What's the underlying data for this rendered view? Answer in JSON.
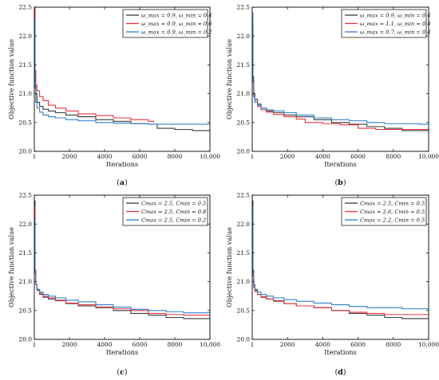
{
  "colors": {
    "black": "#3a3a3a",
    "red": "#e8343c",
    "blue": "#2f7fd1"
  },
  "chart_data": [
    {
      "panel": "a",
      "caption_open": "(",
      "caption_letter": "a",
      "caption_close": ")",
      "type": "line",
      "xlabel": "Iterations",
      "ylabel": "Objective function value",
      "xlim": [
        0,
        10000
      ],
      "ylim": [
        20.0,
        22.5
      ],
      "x_ticks": [
        1,
        2000,
        4000,
        6000,
        8000,
        10000
      ],
      "x_tick_labels": [
        "1",
        "2000",
        "4000",
        "6000",
        "8000",
        "10,000"
      ],
      "y_ticks": [
        20.0,
        20.5,
        21.0,
        21.5,
        22.0,
        22.5
      ],
      "y_tick_labels": [
        "20.0",
        "20.5",
        "21.0",
        "21.5",
        "22.0",
        "22.5"
      ],
      "legend_position": "top-right",
      "series": [
        {
          "name": "ω_max = 0.9, ω_min = 0.4",
          "color": "#3a3a3a",
          "x": [
            1,
            40,
            80,
            150,
            300,
            500,
            800,
            1200,
            1800,
            2500,
            3500,
            4500,
            5500,
            6500,
            7000,
            8000,
            9000,
            10000
          ],
          "y": [
            22.5,
            21.4,
            21.0,
            20.85,
            20.78,
            20.73,
            20.7,
            20.67,
            20.63,
            20.6,
            20.55,
            20.52,
            20.48,
            20.47,
            20.4,
            20.38,
            20.36,
            20.35
          ]
        },
        {
          "name": "ω_max = 0.9, ω_min = 0.6",
          "color": "#e8343c",
          "x": [
            1,
            40,
            80,
            150,
            300,
            500,
            800,
            1200,
            1800,
            2500,
            3500,
            4500,
            5500,
            6500,
            6800
          ],
          "y": [
            22.5,
            21.4,
            21.15,
            21.05,
            20.95,
            20.88,
            20.8,
            20.75,
            20.7,
            20.65,
            20.62,
            20.58,
            20.55,
            20.52,
            20.5
          ]
        },
        {
          "name": "ω_max = 0.9, ω_min = 0.2",
          "color": "#2f7fd1",
          "x": [
            1,
            40,
            80,
            150,
            300,
            500,
            800,
            1200,
            1800,
            2500,
            3500,
            4500,
            5500,
            6500,
            8000,
            10000
          ],
          "y": [
            22.3,
            21.1,
            20.85,
            20.75,
            20.68,
            20.63,
            20.6,
            20.58,
            20.55,
            20.53,
            20.5,
            20.49,
            20.48,
            20.47,
            20.47,
            20.46
          ]
        }
      ]
    },
    {
      "panel": "b",
      "caption_open": "(",
      "caption_letter": "b",
      "caption_close": ")",
      "type": "line",
      "xlabel": "Iterations",
      "ylabel": "Objective function value",
      "xlim": [
        0,
        10000
      ],
      "ylim": [
        20.0,
        22.5
      ],
      "x_ticks": [
        1,
        2000,
        4000,
        6000,
        8000,
        10000
      ],
      "x_tick_labels": [
        "1",
        "2000",
        "4000",
        "6000",
        "8000",
        "10,000"
      ],
      "y_ticks": [
        20.0,
        20.5,
        21.0,
        21.5,
        22.0,
        22.5
      ],
      "y_tick_labels": [
        "20.0",
        "20.5",
        "21.0",
        "21.5",
        "22.0",
        "22.5"
      ],
      "legend_position": "top-right",
      "series": [
        {
          "name": "ω_max = 0.9, ω_min = 0.4",
          "color": "#3a3a3a",
          "x": [
            1,
            40,
            80,
            150,
            300,
            500,
            800,
            1200,
            1800,
            2500,
            3500,
            4500,
            5500,
            6500,
            7500,
            8500,
            10000
          ],
          "y": [
            22.2,
            21.3,
            21.0,
            20.9,
            20.82,
            20.75,
            20.7,
            20.67,
            20.63,
            20.6,
            20.55,
            20.5,
            20.47,
            20.43,
            20.4,
            20.36,
            20.35
          ]
        },
        {
          "name": "ω_max = 1.1, ω_min = 0.4",
          "color": "#e8343c",
          "x": [
            1,
            40,
            80,
            150,
            300,
            500,
            800,
            1200,
            1800,
            2500,
            3000,
            4000,
            5000,
            6000,
            7000,
            8000,
            10000
          ],
          "y": [
            22.1,
            21.2,
            20.95,
            20.85,
            20.78,
            20.72,
            20.68,
            20.64,
            20.6,
            20.56,
            20.5,
            20.48,
            20.46,
            20.4,
            20.38,
            20.38,
            20.38
          ]
        },
        {
          "name": "ω_max = 0.7, ω_min = 0.4",
          "color": "#2f7fd1",
          "x": [
            1,
            40,
            80,
            150,
            300,
            500,
            800,
            1200,
            1800,
            2500,
            3500,
            4500,
            5500,
            6500,
            7500,
            8500,
            9500,
            10000
          ],
          "y": [
            22.4,
            21.2,
            20.95,
            20.85,
            20.8,
            20.75,
            20.72,
            20.7,
            20.67,
            20.63,
            20.58,
            20.55,
            20.53,
            20.5,
            20.48,
            20.48,
            20.47,
            20.45
          ]
        }
      ]
    },
    {
      "panel": "c",
      "caption_open": "(",
      "caption_letter": "c",
      "caption_close": ")",
      "type": "line",
      "xlabel": "Iterations",
      "ylabel": "Objective function value",
      "xlim": [
        0,
        10000
      ],
      "ylim": [
        20.0,
        22.5
      ],
      "x_ticks": [
        1,
        2000,
        4000,
        6000,
        8000,
        10000
      ],
      "x_tick_labels": [
        "1",
        "2000",
        "4000",
        "6000",
        "8000",
        "10,000"
      ],
      "y_ticks": [
        20.0,
        20.5,
        21.0,
        21.5,
        22.0,
        22.5
      ],
      "y_tick_labels": [
        "20.0",
        "20.5",
        "21.0",
        "21.5",
        "22.0",
        "22.5"
      ],
      "legend_position": "top-right",
      "series": [
        {
          "name": "Cmax = 2.5, Cmin = 0.5",
          "color": "#3a3a3a",
          "x": [
            1,
            40,
            80,
            150,
            300,
            500,
            800,
            1200,
            1800,
            2500,
            3500,
            4500,
            5500,
            6500,
            7500,
            8500,
            10000
          ],
          "y": [
            22.4,
            21.2,
            20.95,
            20.85,
            20.78,
            20.73,
            20.7,
            20.67,
            20.62,
            20.58,
            20.55,
            20.5,
            20.45,
            20.42,
            20.38,
            20.36,
            20.35
          ]
        },
        {
          "name": "Cmax = 2.5, Cmin = 0.8",
          "color": "#e8343c",
          "x": [
            1,
            40,
            80,
            150,
            300,
            500,
            800,
            1200,
            1800,
            2500,
            3500,
            4500,
            5500,
            6500,
            7500,
            8500,
            10000
          ],
          "y": [
            22.3,
            21.2,
            20.95,
            20.87,
            20.8,
            20.75,
            20.72,
            20.68,
            20.63,
            20.6,
            20.56,
            20.53,
            20.5,
            20.45,
            20.43,
            20.42,
            20.42
          ]
        },
        {
          "name": "Cmax = 2.5, Cmin = 0.2",
          "color": "#2f7fd1",
          "x": [
            1,
            40,
            80,
            150,
            300,
            500,
            800,
            1200,
            1800,
            2500,
            3500,
            4500,
            5500,
            6500,
            7500,
            8500,
            10000
          ],
          "y": [
            22.1,
            21.15,
            20.95,
            20.87,
            20.82,
            20.78,
            20.75,
            20.72,
            20.68,
            20.65,
            20.6,
            20.56,
            20.52,
            20.5,
            20.48,
            20.46,
            20.45
          ]
        }
      ]
    },
    {
      "panel": "d",
      "caption_open": "(",
      "caption_letter": "d",
      "caption_close": ")",
      "type": "line",
      "xlabel": "Iterations",
      "ylabel": "Objective function value",
      "xlim": [
        0,
        10000
      ],
      "ylim": [
        20.0,
        22.5
      ],
      "x_ticks": [
        1,
        2000,
        4000,
        6000,
        8000,
        10000
      ],
      "x_tick_labels": [
        "1",
        "2000",
        "4000",
        "6000",
        "8000",
        "10,000"
      ],
      "y_ticks": [
        20.0,
        20.5,
        21.0,
        21.5,
        22.0,
        22.5
      ],
      "y_tick_labels": [
        "20.0",
        "20.5",
        "21.0",
        "21.5",
        "22.0",
        "22.5"
      ],
      "legend_position": "top-right",
      "series": [
        {
          "name": "Cmax = 2.5, Cmin = 0.5",
          "color": "#3a3a3a",
          "x": [
            1,
            40,
            80,
            150,
            300,
            500,
            800,
            1200,
            1800,
            2500,
            3500,
            4500,
            5500,
            6500,
            7500,
            8500,
            10000
          ],
          "y": [
            22.4,
            21.2,
            20.95,
            20.85,
            20.78,
            20.73,
            20.7,
            20.67,
            20.62,
            20.58,
            20.55,
            20.5,
            20.45,
            20.42,
            20.38,
            20.36,
            20.35
          ]
        },
        {
          "name": "Cmax = 2.6, Cmin = 0.5",
          "color": "#e8343c",
          "x": [
            1,
            40,
            80,
            150,
            300,
            500,
            800,
            1200,
            1800,
            2500,
            3500,
            4500,
            5500,
            6500,
            7500,
            8500,
            10000
          ],
          "y": [
            22.0,
            21.1,
            20.9,
            20.83,
            20.78,
            20.74,
            20.7,
            20.66,
            20.62,
            20.58,
            20.55,
            20.5,
            20.47,
            20.45,
            20.43,
            20.43,
            20.43
          ]
        },
        {
          "name": "Cmax = 2.2, Cmin = 0.5",
          "color": "#2f7fd1",
          "x": [
            1,
            40,
            80,
            150,
            300,
            500,
            800,
            1200,
            1800,
            2500,
            3500,
            4500,
            5500,
            6500,
            7500,
            8500,
            10000
          ],
          "y": [
            22.3,
            21.15,
            20.95,
            20.87,
            20.82,
            20.78,
            20.75,
            20.72,
            20.69,
            20.66,
            20.63,
            20.6,
            20.57,
            20.55,
            20.55,
            20.53,
            20.52
          ]
        }
      ]
    }
  ]
}
